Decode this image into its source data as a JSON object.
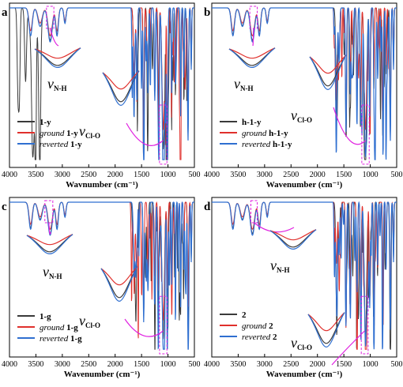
{
  "colors": {
    "black": "#3a3a3a",
    "red": "#e0302c",
    "blue": "#2f6fd0",
    "magenta": "#e020e0"
  },
  "chart_data": [
    {
      "panel": "a",
      "type": "line",
      "xlabel": "Wavnumber (cm⁻¹)",
      "xlim": [
        4000,
        500
      ],
      "xticks": [
        "4000",
        "3500",
        "3000",
        "2500",
        "2000",
        "1500",
        "1000",
        "500"
      ],
      "series": [
        {
          "name": "1-y",
          "prefix": "",
          "bold": "1-y",
          "color": "black"
        },
        {
          "name": "ground 1-y",
          "prefix": "ground ",
          "bold": "1-y",
          "color": "red"
        },
        {
          "name": "reverted 1-y",
          "prefix": "reverted ",
          "bold": "1-y",
          "color": "blue"
        }
      ],
      "annotations": [
        {
          "symbol": "ν",
          "sub": "N-H",
          "region": [
            3300,
            3160
          ]
        },
        {
          "symbol": "ν",
          "sub": "Cl-O",
          "region": [
            1160,
            1020
          ]
        }
      ]
    },
    {
      "panel": "b",
      "type": "line",
      "xlabel": "Wavenumber (cm⁻¹)",
      "xlim": [
        4000,
        500
      ],
      "xticks": [
        "4000",
        "3500",
        "3000",
        "2500",
        "2000",
        "1500",
        "1000",
        "500"
      ],
      "series": [
        {
          "name": "h-1-y",
          "prefix": "",
          "bold": "h-1-y",
          "color": "black"
        },
        {
          "name": "ground h-1-y",
          "prefix": "ground ",
          "bold": "h-1-y",
          "color": "red"
        },
        {
          "name": "reverted h-1-y",
          "prefix": "reverted ",
          "bold": "h-1-y",
          "color": "blue"
        }
      ],
      "annotations": [
        {
          "symbol": "ν",
          "sub": "N-H",
          "region": [
            3280,
            3140
          ]
        },
        {
          "symbol": "ν",
          "sub": "Cl-O",
          "region": [
            1160,
            1020
          ]
        }
      ]
    },
    {
      "panel": "c",
      "type": "line",
      "xlabel": "Wavenumber (cm⁻¹)",
      "xlim": [
        4000,
        500
      ],
      "xticks": [
        "4000",
        "3500",
        "3000",
        "2500",
        "2000",
        "1500",
        "1000",
        "500"
      ],
      "series": [
        {
          "name": "1-g",
          "prefix": "",
          "bold": "1-g",
          "color": "black"
        },
        {
          "name": "ground 1-g",
          "prefix": "ground ",
          "bold": "1-g",
          "color": "red"
        },
        {
          "name": "reverted 1-g",
          "prefix": "reverted ",
          "bold": "1-g",
          "color": "blue"
        }
      ],
      "annotations": [
        {
          "symbol": "ν",
          "sub": "N-H",
          "region": [
            3330,
            3180
          ]
        },
        {
          "symbol": "ν",
          "sub": "Cl-O",
          "region": [
            1160,
            1020
          ]
        }
      ]
    },
    {
      "panel": "d",
      "type": "line",
      "xlabel": "Wavenumber (cm⁻¹)",
      "xlim": [
        4000,
        500
      ],
      "xticks": [
        "4000",
        "3500",
        "3000",
        "2500",
        "2000",
        "1500",
        "1000",
        "500"
      ],
      "series": [
        {
          "name": "2",
          "prefix": "",
          "bold": "2",
          "color": "black"
        },
        {
          "name": "ground 2",
          "prefix": "ground ",
          "bold": "2",
          "color": "red"
        },
        {
          "name": "reverted 2",
          "prefix": "reverted ",
          "bold": "2",
          "color": "blue"
        }
      ],
      "annotations": [
        {
          "symbol": "ν",
          "sub": "N-H",
          "region": [
            3260,
            3140
          ]
        },
        {
          "symbol": "ν",
          "sub": "Cl-O",
          "region": [
            1170,
            1040
          ]
        }
      ]
    }
  ]
}
